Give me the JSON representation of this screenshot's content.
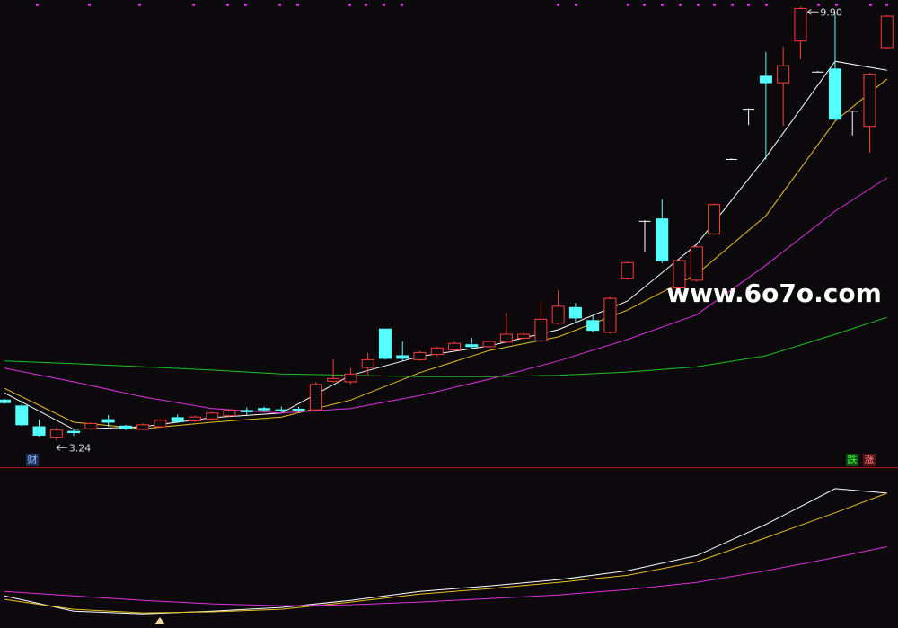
{
  "chart_data": [
    {
      "type": "candlestick",
      "ylim": [
        2.83,
        10.0
      ],
      "open": [
        3.86,
        3.77,
        3.45,
        3.29,
        3.38,
        3.42,
        3.56,
        3.46,
        3.41,
        3.45,
        3.59,
        3.54,
        3.57,
        3.62,
        3.7,
        3.73,
        3.71,
        3.72,
        3.71,
        4.15,
        4.14,
        4.36,
        4.95,
        4.54,
        4.48,
        4.56,
        4.63,
        4.71,
        4.68,
        4.75,
        4.81,
        4.77,
        5.04,
        5.28,
        5.08,
        4.9,
        5.73,
        6.61,
        6.64,
        5.58,
        5.7,
        6.41,
        7.56,
        8.33,
        8.83,
        8.73,
        9.37,
        8.9,
        8.94,
        8.3,
        8.06,
        9.27
      ],
      "close": [
        3.82,
        3.48,
        3.32,
        3.4,
        3.36,
        3.5,
        3.52,
        3.42,
        3.48,
        3.55,
        3.53,
        3.6,
        3.66,
        3.7,
        3.68,
        3.71,
        3.7,
        3.71,
        4.1,
        4.19,
        4.26,
        4.48,
        4.5,
        4.5,
        4.59,
        4.66,
        4.73,
        4.68,
        4.76,
        4.87,
        4.87,
        5.1,
        5.3,
        5.12,
        4.93,
        5.42,
        5.97,
        6.61,
        6.0,
        6.0,
        6.21,
        6.86,
        7.56,
        8.33,
        8.73,
        8.99,
        9.87,
        8.9,
        8.17,
        8.3,
        8.86,
        9.75
      ],
      "high": [
        3.88,
        3.86,
        3.56,
        3.44,
        3.42,
        3.52,
        3.63,
        3.48,
        3.5,
        3.57,
        3.64,
        3.62,
        3.68,
        3.72,
        3.75,
        3.76,
        3.76,
        3.76,
        4.14,
        4.48,
        4.35,
        4.58,
        4.96,
        4.76,
        4.61,
        4.68,
        4.76,
        4.82,
        4.79,
        5.2,
        4.9,
        5.37,
        5.55,
        5.35,
        5.16,
        5.44,
        5.99,
        6.62,
        6.94,
        6.02,
        6.23,
        6.88,
        7.57,
        8.34,
        9.2,
        9.28,
        9.9,
        8.91,
        9.79,
        8.3,
        8.88,
        9.77
      ],
      "low": [
        3.8,
        3.45,
        3.3,
        3.24,
        3.31,
        3.4,
        3.45,
        3.4,
        3.4,
        3.44,
        3.51,
        3.52,
        3.55,
        3.6,
        3.63,
        3.69,
        3.67,
        3.68,
        3.68,
        4.13,
        4.1,
        4.24,
        4.48,
        4.46,
        4.46,
        4.53,
        4.61,
        4.64,
        4.66,
        4.73,
        4.79,
        4.75,
        5.02,
        5.04,
        4.9,
        4.88,
        5.71,
        6.14,
        5.96,
        5.52,
        5.68,
        6.39,
        7.55,
        8.08,
        7.55,
        8.07,
        9.09,
        8.89,
        8.16,
        7.92,
        7.66,
        9.25
      ],
      "up_color": "#ff3c3c",
      "down_color": "#54ffff",
      "flat_color": "#ffffff",
      "series": [
        {
          "color": "#ffffff",
          "x": [
            0,
            4,
            8,
            12,
            16,
            20,
            24,
            28,
            32,
            36,
            40,
            44,
            48,
            51
          ],
          "values": [
            3.97,
            3.41,
            3.45,
            3.59,
            3.66,
            4.24,
            4.53,
            4.69,
            4.94,
            5.38,
            6.25,
            7.59,
            9.06,
            8.92
          ]
        },
        {
          "color": "#e8c020",
          "x": [
            0,
            4,
            8,
            12,
            16,
            20,
            24,
            28,
            32,
            36,
            40,
            44,
            48,
            51
          ],
          "values": [
            4.04,
            3.52,
            3.42,
            3.52,
            3.6,
            3.86,
            4.28,
            4.62,
            4.83,
            5.24,
            5.79,
            6.69,
            8.14,
            8.79
          ]
        },
        {
          "color": "#e030e0",
          "x": [
            0,
            4,
            8,
            12,
            16,
            20,
            24,
            28,
            32,
            36,
            40,
            44,
            48,
            51
          ],
          "values": [
            4.35,
            4.14,
            3.91,
            3.73,
            3.66,
            3.73,
            3.93,
            4.18,
            4.46,
            4.79,
            5.17,
            5.93,
            6.76,
            7.27
          ]
        },
        {
          "color": "#20c020",
          "x": [
            0,
            4,
            8,
            12,
            16,
            20,
            24,
            28,
            32,
            36,
            40,
            44,
            48,
            51
          ],
          "values": [
            4.46,
            4.42,
            4.37,
            4.32,
            4.26,
            4.24,
            4.22,
            4.22,
            4.24,
            4.29,
            4.37,
            4.54,
            4.87,
            5.13
          ]
        }
      ],
      "high_label": "9.90",
      "low_label": "3.24",
      "watermark": "www.6o7o.com",
      "tags": [
        "财",
        "跌",
        "涨"
      ]
    },
    {
      "type": "line",
      "ylim": [
        0,
        100
      ],
      "series": [
        {
          "color": "#ffffff",
          "x": [
            0,
            4,
            8,
            12,
            16,
            20,
            24,
            28,
            32,
            36,
            40,
            44,
            48,
            51
          ],
          "values": [
            20.3,
            10.7,
            9.0,
            10.7,
            13.0,
            17.5,
            23.2,
            26.6,
            30.5,
            36.2,
            45.8,
            65.5,
            88.1,
            85.3
          ]
        },
        {
          "color": "#e8c020",
          "x": [
            0,
            4,
            8,
            12,
            16,
            20,
            24,
            28,
            32,
            36,
            40,
            44,
            48,
            51
          ],
          "values": [
            18.1,
            11.9,
            9.6,
            10.2,
            11.9,
            16.4,
            21.5,
            24.9,
            28.8,
            33.3,
            41.8,
            57.1,
            72.9,
            85.3
          ]
        },
        {
          "color": "#e030e0",
          "x": [
            0,
            4,
            8,
            12,
            16,
            20,
            24,
            28,
            32,
            36,
            40,
            44,
            48,
            51
          ],
          "values": [
            23.2,
            20.3,
            17.5,
            15.3,
            14.1,
            14.7,
            16.4,
            18.6,
            20.9,
            24.3,
            28.8,
            36.2,
            44.6,
            51.4
          ]
        }
      ]
    }
  ]
}
